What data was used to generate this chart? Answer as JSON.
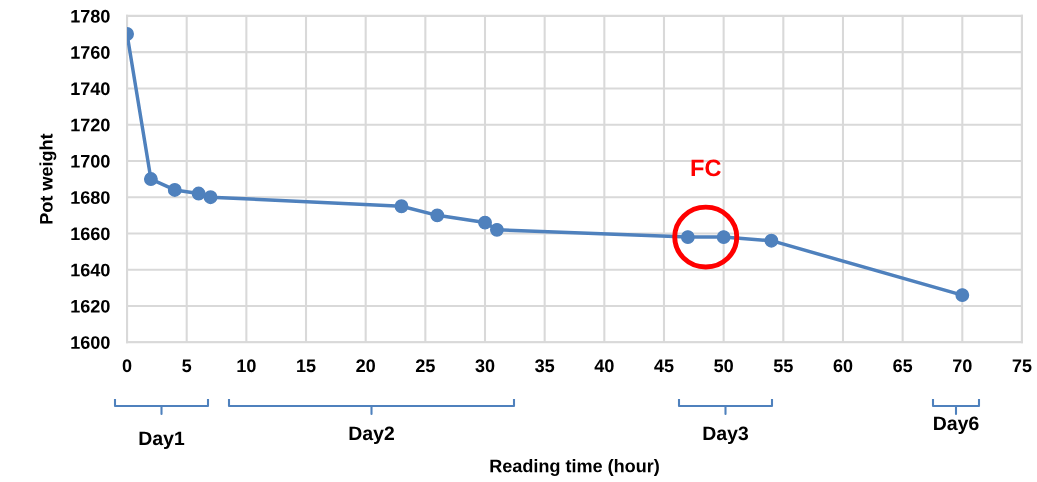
{
  "chart_data": {
    "type": "line",
    "xlabel": "Reading time (hour)",
    "ylabel": "Pot weight",
    "x": [
      0,
      2,
      4,
      6,
      7,
      23,
      26,
      30,
      31,
      47,
      50,
      54,
      70
    ],
    "series": [
      {
        "color": "#4f81bd",
        "values": [
          1770,
          1690,
          1684,
          1682,
          1680,
          1675,
          1670,
          1666,
          1662,
          1658,
          1658,
          1656,
          1626
        ]
      }
    ],
    "xlim": [
      0,
      75
    ],
    "xticks": [
      0,
      5,
      10,
      15,
      20,
      25,
      30,
      35,
      40,
      45,
      50,
      55,
      60,
      65,
      70,
      75
    ],
    "ylim": [
      1600,
      1780
    ],
    "yticks": [
      1600,
      1620,
      1640,
      1660,
      1680,
      1700,
      1720,
      1740,
      1760,
      1780
    ],
    "grid": true,
    "marker": "circle",
    "line_style": "solid",
    "annotations": [
      {
        "text": "FC",
        "x": 48.5,
        "y": 1658
      },
      "Day1",
      "Day2",
      "Day3",
      "Day6"
    ]
  }
}
